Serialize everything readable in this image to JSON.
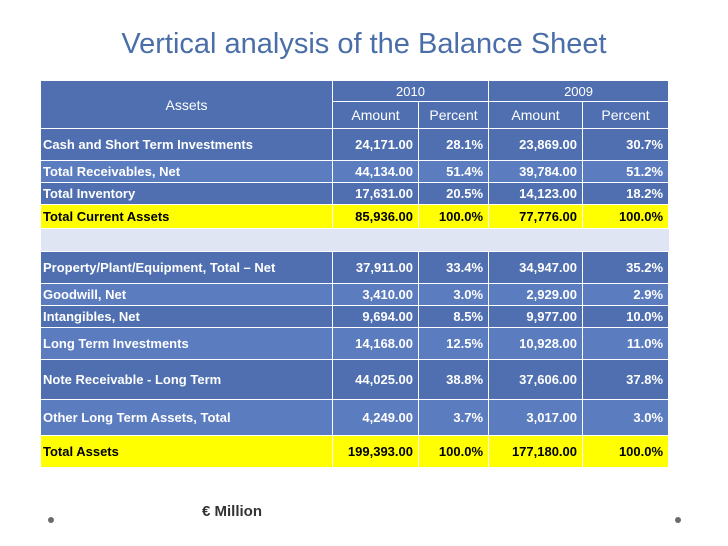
{
  "title": "Vertical analysis of the Balance Sheet",
  "header": {
    "assets": "Assets",
    "year_2010": "2010",
    "year_2009": "2009",
    "amount": "Amount",
    "percent": "Percent"
  },
  "rows": [
    {
      "label": "Cash and Short Term Investments",
      "a2010": "24,171.00",
      "p2010": "28.1%",
      "a2009": "23,869.00",
      "p2009": "30.7%"
    },
    {
      "label": "Total Receivables, Net",
      "a2010": "44,134.00",
      "p2010": "51.4%",
      "a2009": "39,784.00",
      "p2009": "51.2%"
    },
    {
      "label": "Total Inventory",
      "a2010": "17,631.00",
      "p2010": "20.5%",
      "a2009": "14,123.00",
      "p2009": "18.2%"
    },
    {
      "label": "Total Current Assets",
      "a2010": "85,936.00",
      "p2010": "100.0%",
      "a2009": "77,776.00",
      "p2009": "100.0%"
    },
    {
      "label": "Property/Plant/Equipment, Total – Net",
      "a2010": "37,911.00",
      "p2010": "33.4%",
      "a2009": "34,947.00",
      "p2009": "35.2%"
    },
    {
      "label": "Goodwill, Net",
      "a2010": "3,410.00",
      "p2010": "3.0%",
      "a2009": "2,929.00",
      "p2009": "2.9%"
    },
    {
      "label": "Intangibles, Net",
      "a2010": "9,694.00",
      "p2010": "8.5%",
      "a2009": "9,977.00",
      "p2009": "10.0%"
    },
    {
      "label": "Long Term Investments",
      "a2010": "14,168.00",
      "p2010": "12.5%",
      "a2009": "10,928.00",
      "p2009": "11.0%"
    },
    {
      "label": "Note Receivable - Long Term",
      "a2010": "44,025.00",
      "p2010": "38.8%",
      "a2009": "37,606.00",
      "p2009": "37.8%"
    },
    {
      "label": "Other Long Term Assets, Total",
      "a2010": "4,249.00",
      "p2010": "3.7%",
      "a2009": "3,017.00",
      "p2009": "3.0%"
    },
    {
      "label": "Total Assets",
      "a2010": "199,393.00",
      "p2010": "100.0%",
      "a2009": "177,180.00",
      "p2009": "100.0%"
    }
  ],
  "footer_note": "€ Million",
  "colors": {
    "header_bg": "#4f6fb0",
    "row_dark": "#4f6fb0",
    "row_light": "#5b7cbf",
    "total_bg": "#ffff00",
    "title": "#4a6ea8"
  }
}
